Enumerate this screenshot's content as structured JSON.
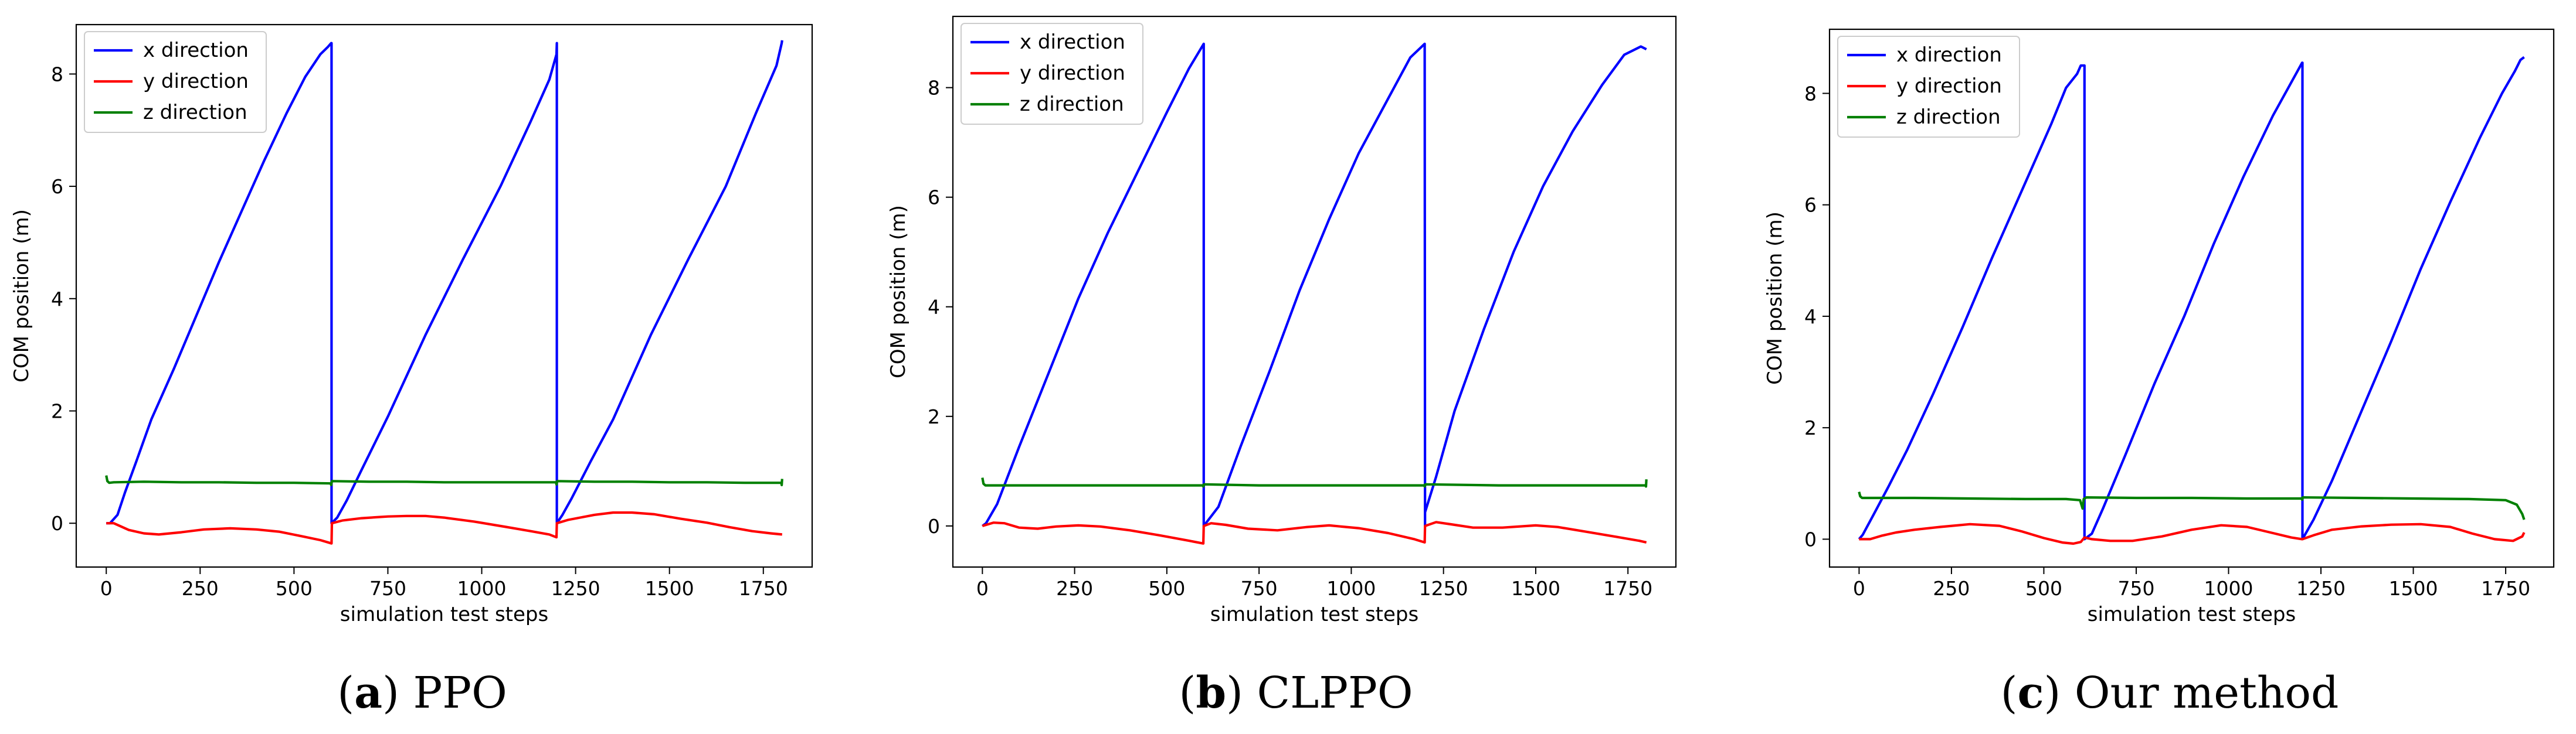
{
  "colors": {
    "x": "#0000ff",
    "y": "#ff0000",
    "z": "#008000"
  },
  "chart_data": [
    {
      "type": "line",
      "title": "",
      "xlabel": "simulation test steps",
      "ylabel": "COM position (m)",
      "xlim": [
        -80,
        1880
      ],
      "ylim": [
        -0.78,
        8.88
      ],
      "xticks": [
        0,
        250,
        500,
        750,
        1000,
        1250,
        1500,
        1750
      ],
      "xtick_labels": [
        "0",
        "250",
        "500",
        "750",
        "1000",
        "1250",
        "1500",
        "1750"
      ],
      "yticks": [
        0,
        2,
        4,
        6,
        8
      ],
      "ytick_labels": [
        "0",
        "2",
        "4",
        "6",
        "8"
      ],
      "legend": [
        "x direction",
        "y direction",
        "z direction"
      ],
      "legend_position": "top-left",
      "caption": {
        "letter": "a",
        "text": "PPO"
      },
      "series": [
        {
          "name": "x direction",
          "color_key": "x",
          "x": [
            0,
            10,
            30,
            50,
            80,
            120,
            180,
            240,
            300,
            360,
            420,
            480,
            530,
            570,
            590,
            599,
            600,
            600,
            615,
            640,
            680,
            750,
            850,
            950,
            1050,
            1130,
            1180,
            1199,
            1200,
            1200,
            1215,
            1240,
            1290,
            1350,
            1450,
            1550,
            1650,
            1730,
            1785,
            1799,
            1800
          ],
          "y": [
            0,
            0,
            0.15,
            0.55,
            1.1,
            1.85,
            2.75,
            3.7,
            4.65,
            5.55,
            6.45,
            7.3,
            7.95,
            8.35,
            8.48,
            8.55,
            8.55,
            0,
            0.1,
            0.4,
            0.95,
            1.9,
            3.35,
            4.7,
            6.0,
            7.15,
            7.9,
            8.35,
            8.55,
            0,
            0.15,
            0.45,
            1.1,
            1.85,
            3.35,
            4.7,
            6.0,
            7.3,
            8.15,
            8.55,
            8.6
          ]
        },
        {
          "name": "y direction",
          "color_key": "y",
          "x": [
            0,
            20,
            60,
            100,
            140,
            200,
            260,
            330,
            400,
            460,
            520,
            570,
            600,
            601,
            630,
            680,
            750,
            800,
            850,
            900,
            980,
            1060,
            1130,
            1180,
            1199,
            1200,
            1230,
            1300,
            1350,
            1400,
            1460,
            1530,
            1600,
            1660,
            1720,
            1770,
            1800
          ],
          "y": [
            0,
            0,
            -0.12,
            -0.18,
            -0.2,
            -0.16,
            -0.11,
            -0.09,
            -0.11,
            -0.15,
            -0.23,
            -0.3,
            -0.36,
            0,
            0.05,
            0.09,
            0.12,
            0.13,
            0.13,
            0.1,
            0.03,
            -0.06,
            -0.14,
            -0.2,
            -0.25,
            0,
            0.06,
            0.15,
            0.19,
            0.19,
            0.16,
            0.08,
            0.01,
            -0.07,
            -0.14,
            -0.18,
            -0.2
          ]
        },
        {
          "name": "z direction",
          "color_key": "z",
          "x": [
            0,
            3,
            8,
            20,
            100,
            200,
            300,
            400,
            500,
            598,
            599,
            601,
            700,
            800,
            900,
            1000,
            1100,
            1198,
            1199,
            1201,
            1300,
            1400,
            1500,
            1600,
            1700,
            1798,
            1799,
            1800
          ],
          "y": [
            0.85,
            0.75,
            0.72,
            0.73,
            0.74,
            0.73,
            0.73,
            0.72,
            0.72,
            0.71,
            0.68,
            0.75,
            0.74,
            0.74,
            0.73,
            0.73,
            0.73,
            0.73,
            0.69,
            0.75,
            0.74,
            0.74,
            0.73,
            0.73,
            0.72,
            0.72,
            0.68,
            0.79
          ]
        }
      ]
    },
    {
      "type": "line",
      "title": "",
      "xlabel": "simulation test steps",
      "ylabel": "COM position (m)",
      "xlim": [
        -80,
        1880
      ],
      "ylim": [
        -0.75,
        9.3
      ],
      "xticks": [
        0,
        250,
        500,
        750,
        1000,
        1250,
        1500,
        1750
      ],
      "xtick_labels": [
        "0",
        "250",
        "500",
        "750",
        "1000",
        "1250",
        "1500",
        "1750"
      ],
      "yticks": [
        0,
        2,
        4,
        6,
        8
      ],
      "ytick_labels": [
        "0",
        "2",
        "4",
        "6",
        "8"
      ],
      "legend": [
        "x direction",
        "y direction",
        "z direction"
      ],
      "legend_position": "top-left",
      "caption": {
        "letter": "b",
        "text": "CLPPO"
      },
      "series": [
        {
          "name": "x direction",
          "color_key": "x",
          "x": [
            0,
            10,
            40,
            100,
            180,
            260,
            340,
            420,
            500,
            560,
            600,
            600,
            640,
            700,
            780,
            860,
            940,
            1020,
            1100,
            1160,
            1199,
            1200,
            1200,
            1230,
            1280,
            1360,
            1440,
            1520,
            1600,
            1680,
            1740,
            1785,
            1800
          ],
          "y": [
            0,
            0.05,
            0.4,
            1.45,
            2.8,
            4.15,
            5.35,
            6.45,
            7.55,
            8.35,
            8.8,
            0,
            0.35,
            1.45,
            2.85,
            4.3,
            5.6,
            6.8,
            7.8,
            8.55,
            8.8,
            0,
            0.25,
            0.9,
            2.1,
            3.6,
            5.0,
            6.2,
            7.2,
            8.05,
            8.6,
            8.75,
            8.7
          ]
        },
        {
          "name": "y direction",
          "color_key": "y",
          "x": [
            0,
            30,
            60,
            100,
            150,
            200,
            260,
            320,
            400,
            480,
            560,
            599,
            600,
            620,
            660,
            720,
            800,
            880,
            940,
            1020,
            1100,
            1170,
            1199,
            1200,
            1230,
            1270,
            1330,
            1410,
            1500,
            1560,
            1640,
            1720,
            1780,
            1800
          ],
          "y": [
            0,
            0.06,
            0.05,
            -0.03,
            -0.05,
            -0.01,
            0.01,
            -0.01,
            -0.08,
            -0.17,
            -0.27,
            -0.32,
            0,
            0.05,
            0.02,
            -0.05,
            -0.08,
            -0.02,
            0.01,
            -0.04,
            -0.13,
            -0.24,
            -0.3,
            0,
            0.07,
            0.03,
            -0.03,
            -0.03,
            0.01,
            -0.02,
            -0.11,
            -0.2,
            -0.27,
            -0.3
          ]
        },
        {
          "name": "z direction",
          "color_key": "z",
          "x": [
            0,
            3,
            8,
            20,
            150,
            300,
            450,
            598,
            599,
            601,
            750,
            900,
            1050,
            1198,
            1199,
            1201,
            1400,
            1600,
            1798,
            1799,
            1800
          ],
          "y": [
            0.88,
            0.77,
            0.74,
            0.74,
            0.74,
            0.74,
            0.74,
            0.74,
            0.72,
            0.76,
            0.74,
            0.74,
            0.74,
            0.74,
            0.72,
            0.76,
            0.74,
            0.74,
            0.74,
            0.72,
            0.85
          ]
        }
      ]
    },
    {
      "type": "line",
      "title": "",
      "xlabel": "simulation test steps",
      "ylabel": "COM position (m)",
      "xlim": [
        -80,
        1880
      ],
      "ylim": [
        -0.5,
        9.15
      ],
      "xticks": [
        0,
        250,
        500,
        750,
        1000,
        1250,
        1500,
        1750
      ],
      "xtick_labels": [
        "0",
        "250",
        "500",
        "750",
        "1000",
        "1250",
        "1500",
        "1750"
      ],
      "yticks": [
        0,
        2,
        4,
        6,
        8
      ],
      "ytick_labels": [
        "0",
        "2",
        "4",
        "6",
        "8"
      ],
      "legend": [
        "x direction",
        "y direction",
        "z direction"
      ],
      "legend_position": "top-left",
      "caption": {
        "letter": "c",
        "text": "Our method"
      },
      "series": [
        {
          "name": "x direction",
          "color_key": "x",
          "x": [
            0,
            10,
            40,
            80,
            130,
            200,
            280,
            360,
            440,
            520,
            560,
            590,
            600,
            610,
            610,
            630,
            660,
            720,
            800,
            880,
            960,
            1040,
            1120,
            1170,
            1199,
            1200,
            1200,
            1230,
            1280,
            1360,
            1440,
            1520,
            1600,
            1680,
            1740,
            1775,
            1790,
            1800
          ],
          "y": [
            0,
            0.08,
            0.45,
            0.95,
            1.6,
            2.6,
            3.8,
            5.05,
            6.25,
            7.45,
            8.1,
            8.35,
            8.5,
            8.5,
            0,
            0.1,
            0.55,
            1.5,
            2.8,
            4.0,
            5.3,
            6.5,
            7.6,
            8.2,
            8.55,
            8.55,
            0,
            0.35,
            1.05,
            2.3,
            3.55,
            4.85,
            6.05,
            7.2,
            8.0,
            8.4,
            8.6,
            8.65
          ]
        },
        {
          "name": "y direction",
          "color_key": "y",
          "x": [
            0,
            30,
            60,
            100,
            150,
            220,
            300,
            380,
            440,
            500,
            550,
            580,
            600,
            610,
            630,
            680,
            740,
            820,
            900,
            980,
            1050,
            1120,
            1170,
            1199,
            1200,
            1230,
            1280,
            1360,
            1440,
            1520,
            1600,
            1660,
            1720,
            1770,
            1795,
            1800
          ],
          "y": [
            0,
            0,
            0.06,
            0.12,
            0.17,
            0.22,
            0.27,
            0.24,
            0.14,
            0.02,
            -0.06,
            -0.08,
            -0.05,
            0.03,
            0,
            -0.03,
            -0.03,
            0.05,
            0.17,
            0.25,
            0.22,
            0.11,
            0.03,
            0,
            0,
            0.07,
            0.17,
            0.23,
            0.26,
            0.27,
            0.22,
            0.1,
            0,
            -0.03,
            0.05,
            0.12
          ]
        },
        {
          "name": "z direction",
          "color_key": "z",
          "x": [
            0,
            3,
            8,
            20,
            150,
            300,
            450,
            560,
            598,
            605,
            608,
            615,
            750,
            900,
            1050,
            1198,
            1199,
            1201,
            1350,
            1500,
            1650,
            1750,
            1780,
            1795,
            1800
          ],
          "y": [
            0.85,
            0.77,
            0.74,
            0.74,
            0.74,
            0.73,
            0.72,
            0.72,
            0.7,
            0.55,
            0.72,
            0.75,
            0.74,
            0.74,
            0.73,
            0.73,
            0.71,
            0.75,
            0.74,
            0.73,
            0.72,
            0.7,
            0.62,
            0.45,
            0.35
          ]
        }
      ]
    }
  ]
}
